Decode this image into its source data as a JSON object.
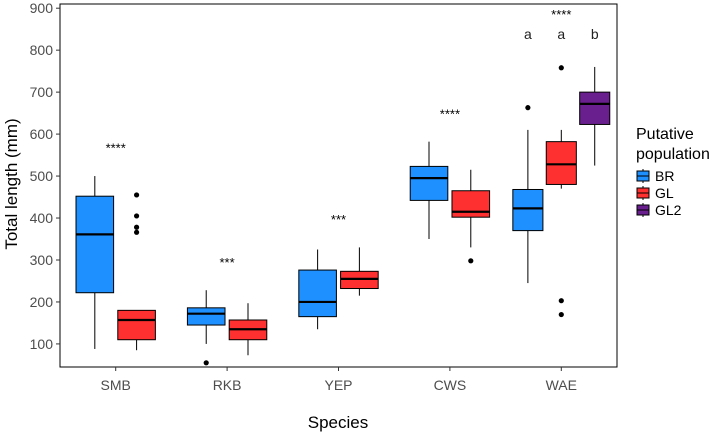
{
  "chart_data": {
    "type": "boxplot",
    "xlabel": "Species",
    "ylabel": "Total length (mm)",
    "ylim": [
      45,
      910
    ],
    "yticks": [
      100,
      200,
      300,
      400,
      500,
      600,
      700,
      800,
      900
    ],
    "grid": false,
    "categories": [
      "SMB",
      "RKB",
      "YEP",
      "CWS",
      "WAE"
    ],
    "legend": {
      "title_line1": "Putative",
      "title_line2": "population",
      "position": "right",
      "entries": [
        {
          "name": "BR",
          "color": "#1e90ff"
        },
        {
          "name": "GL",
          "color": "#ff3030"
        },
        {
          "name": "GL2",
          "color": "#6a1f8f"
        }
      ]
    },
    "groups": [
      {
        "category": "SMB",
        "significance": "****",
        "boxes": [
          {
            "population": "BR",
            "min": 88,
            "q1": 222,
            "median": 361,
            "q3": 452,
            "max": 500,
            "outliers": []
          },
          {
            "population": "GL",
            "min": 85,
            "q1": 110,
            "median": 157,
            "q3": 180,
            "max": 180,
            "outliers": [
              366,
              378,
              405,
              455
            ]
          }
        ]
      },
      {
        "category": "RKB",
        "significance": "***",
        "boxes": [
          {
            "population": "BR",
            "min": 100,
            "q1": 145,
            "median": 172,
            "q3": 186,
            "max": 228,
            "outliers": [
              55
            ]
          },
          {
            "population": "GL",
            "min": 73,
            "q1": 110,
            "median": 135,
            "q3": 157,
            "max": 197,
            "outliers": []
          }
        ]
      },
      {
        "category": "YEP",
        "significance": "***",
        "boxes": [
          {
            "population": "BR",
            "min": 135,
            "q1": 165,
            "median": 200,
            "q3": 276,
            "max": 325,
            "outliers": []
          },
          {
            "population": "GL",
            "min": 215,
            "q1": 232,
            "median": 255,
            "q3": 273,
            "max": 330,
            "outliers": []
          }
        ]
      },
      {
        "category": "CWS",
        "significance": "****",
        "boxes": [
          {
            "population": "BR",
            "min": 350,
            "q1": 442,
            "median": 495,
            "q3": 523,
            "max": 582,
            "outliers": []
          },
          {
            "population": "GL",
            "min": 330,
            "q1": 402,
            "median": 415,
            "q3": 465,
            "max": 515,
            "outliers": [
              298
            ]
          }
        ]
      },
      {
        "category": "WAE",
        "significance": "****",
        "boxes": [
          {
            "population": "BR",
            "label": "a",
            "min": 245,
            "q1": 370,
            "median": 423,
            "q3": 468,
            "max": 610,
            "outliers": [
              663
            ]
          },
          {
            "population": "GL",
            "label": "a",
            "min": 470,
            "q1": 480,
            "median": 528,
            "q3": 582,
            "max": 610,
            "outliers": [
              170,
              203,
              758
            ]
          },
          {
            "population": "GL2",
            "label": "b",
            "min": 525,
            "q1": 623,
            "median": 672,
            "q3": 700,
            "max": 760,
            "outliers": []
          }
        ]
      }
    ]
  }
}
